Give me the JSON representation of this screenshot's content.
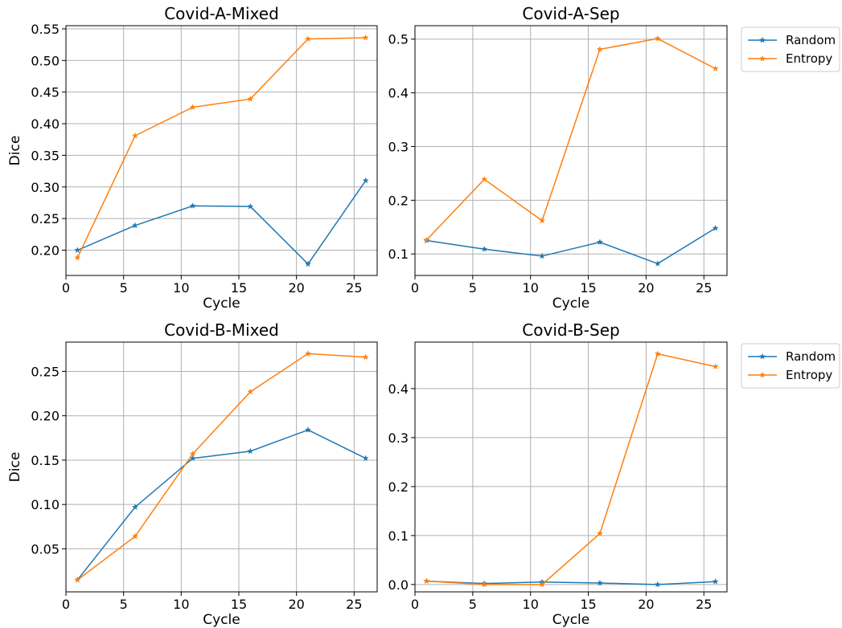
{
  "legend": {
    "entries": [
      {
        "name": "Random",
        "color": "#1f77b4"
      },
      {
        "name": "Entropy",
        "color": "#ff7f0e"
      }
    ]
  },
  "chart_data": [
    {
      "type": "line",
      "title": "Covid-A-Mixed",
      "xlabel": "Cycle",
      "ylabel": "Dice",
      "xlim": [
        0,
        27
      ],
      "ylim": [
        0.16,
        0.555
      ],
      "xticks": [
        0,
        5,
        10,
        15,
        20,
        25
      ],
      "yticks": [
        0.2,
        0.25,
        0.3,
        0.35,
        0.4,
        0.45,
        0.5,
        0.55
      ],
      "ytick_labels": [
        "0.20",
        "0.25",
        "0.30",
        "0.35",
        "0.40",
        "0.45",
        "0.50",
        "0.55"
      ],
      "grid": true,
      "x": [
        1,
        6,
        11,
        16,
        21,
        26
      ],
      "series": [
        {
          "name": "Random",
          "color": "#1f77b4",
          "values": [
            0.2,
            0.239,
            0.27,
            0.269,
            0.178,
            0.31
          ]
        },
        {
          "name": "Entropy",
          "color": "#ff7f0e",
          "values": [
            0.188,
            0.381,
            0.426,
            0.439,
            0.534,
            0.536
          ]
        }
      ]
    },
    {
      "type": "line",
      "title": "Covid-A-Sep",
      "xlabel": "Cycle",
      "ylabel": "",
      "xlim": [
        0,
        27
      ],
      "ylim": [
        0.06,
        0.525
      ],
      "xticks": [
        0,
        5,
        10,
        15,
        20,
        25
      ],
      "yticks": [
        0.1,
        0.2,
        0.3,
        0.4,
        0.5
      ],
      "ytick_labels": [
        "0.1",
        "0.2",
        "0.3",
        "0.4",
        "0.5"
      ],
      "grid": true,
      "legend": "outside-right",
      "x": [
        1,
        6,
        11,
        16,
        21,
        26
      ],
      "series": [
        {
          "name": "Random",
          "color": "#1f77b4",
          "values": [
            0.125,
            0.109,
            0.096,
            0.122,
            0.082,
            0.148
          ]
        },
        {
          "name": "Entropy",
          "color": "#ff7f0e",
          "values": [
            0.126,
            0.239,
            0.162,
            0.481,
            0.501,
            0.445
          ]
        }
      ]
    },
    {
      "type": "line",
      "title": "Covid-B-Mixed",
      "xlabel": "Cycle",
      "ylabel": "Dice",
      "xlim": [
        0,
        27
      ],
      "ylim": [
        0.0015,
        0.283
      ],
      "xticks": [
        0,
        5,
        10,
        15,
        20,
        25
      ],
      "yticks": [
        0.05,
        0.1,
        0.15,
        0.2,
        0.25
      ],
      "ytick_labels": [
        "0.05",
        "0.10",
        "0.15",
        "0.20",
        "0.25"
      ],
      "grid": true,
      "x": [
        1,
        6,
        11,
        16,
        21,
        26
      ],
      "series": [
        {
          "name": "Random",
          "color": "#1f77b4",
          "values": [
            0.015,
            0.097,
            0.152,
            0.16,
            0.184,
            0.152
          ]
        },
        {
          "name": "Entropy",
          "color": "#ff7f0e",
          "values": [
            0.015,
            0.064,
            0.157,
            0.227,
            0.27,
            0.266
          ]
        }
      ]
    },
    {
      "type": "line",
      "title": "Covid-B-Sep",
      "xlabel": "Cycle",
      "ylabel": "",
      "xlim": [
        0,
        27
      ],
      "ylim": [
        -0.015,
        0.495
      ],
      "xticks": [
        0,
        5,
        10,
        15,
        20,
        25
      ],
      "yticks": [
        0.0,
        0.1,
        0.2,
        0.3,
        0.4
      ],
      "ytick_labels": [
        "0.0",
        "0.1",
        "0.2",
        "0.3",
        "0.4"
      ],
      "grid": true,
      "legend": "outside-right",
      "x": [
        1,
        6,
        11,
        16,
        21,
        26
      ],
      "series": [
        {
          "name": "Random",
          "color": "#1f77b4",
          "values": [
            0.007,
            0.002,
            0.005,
            0.003,
            0.0,
            0.006
          ]
        },
        {
          "name": "Entropy",
          "color": "#ff7f0e",
          "values": [
            0.007,
            0.0,
            0.0,
            0.104,
            0.471,
            0.445
          ]
        }
      ]
    }
  ]
}
